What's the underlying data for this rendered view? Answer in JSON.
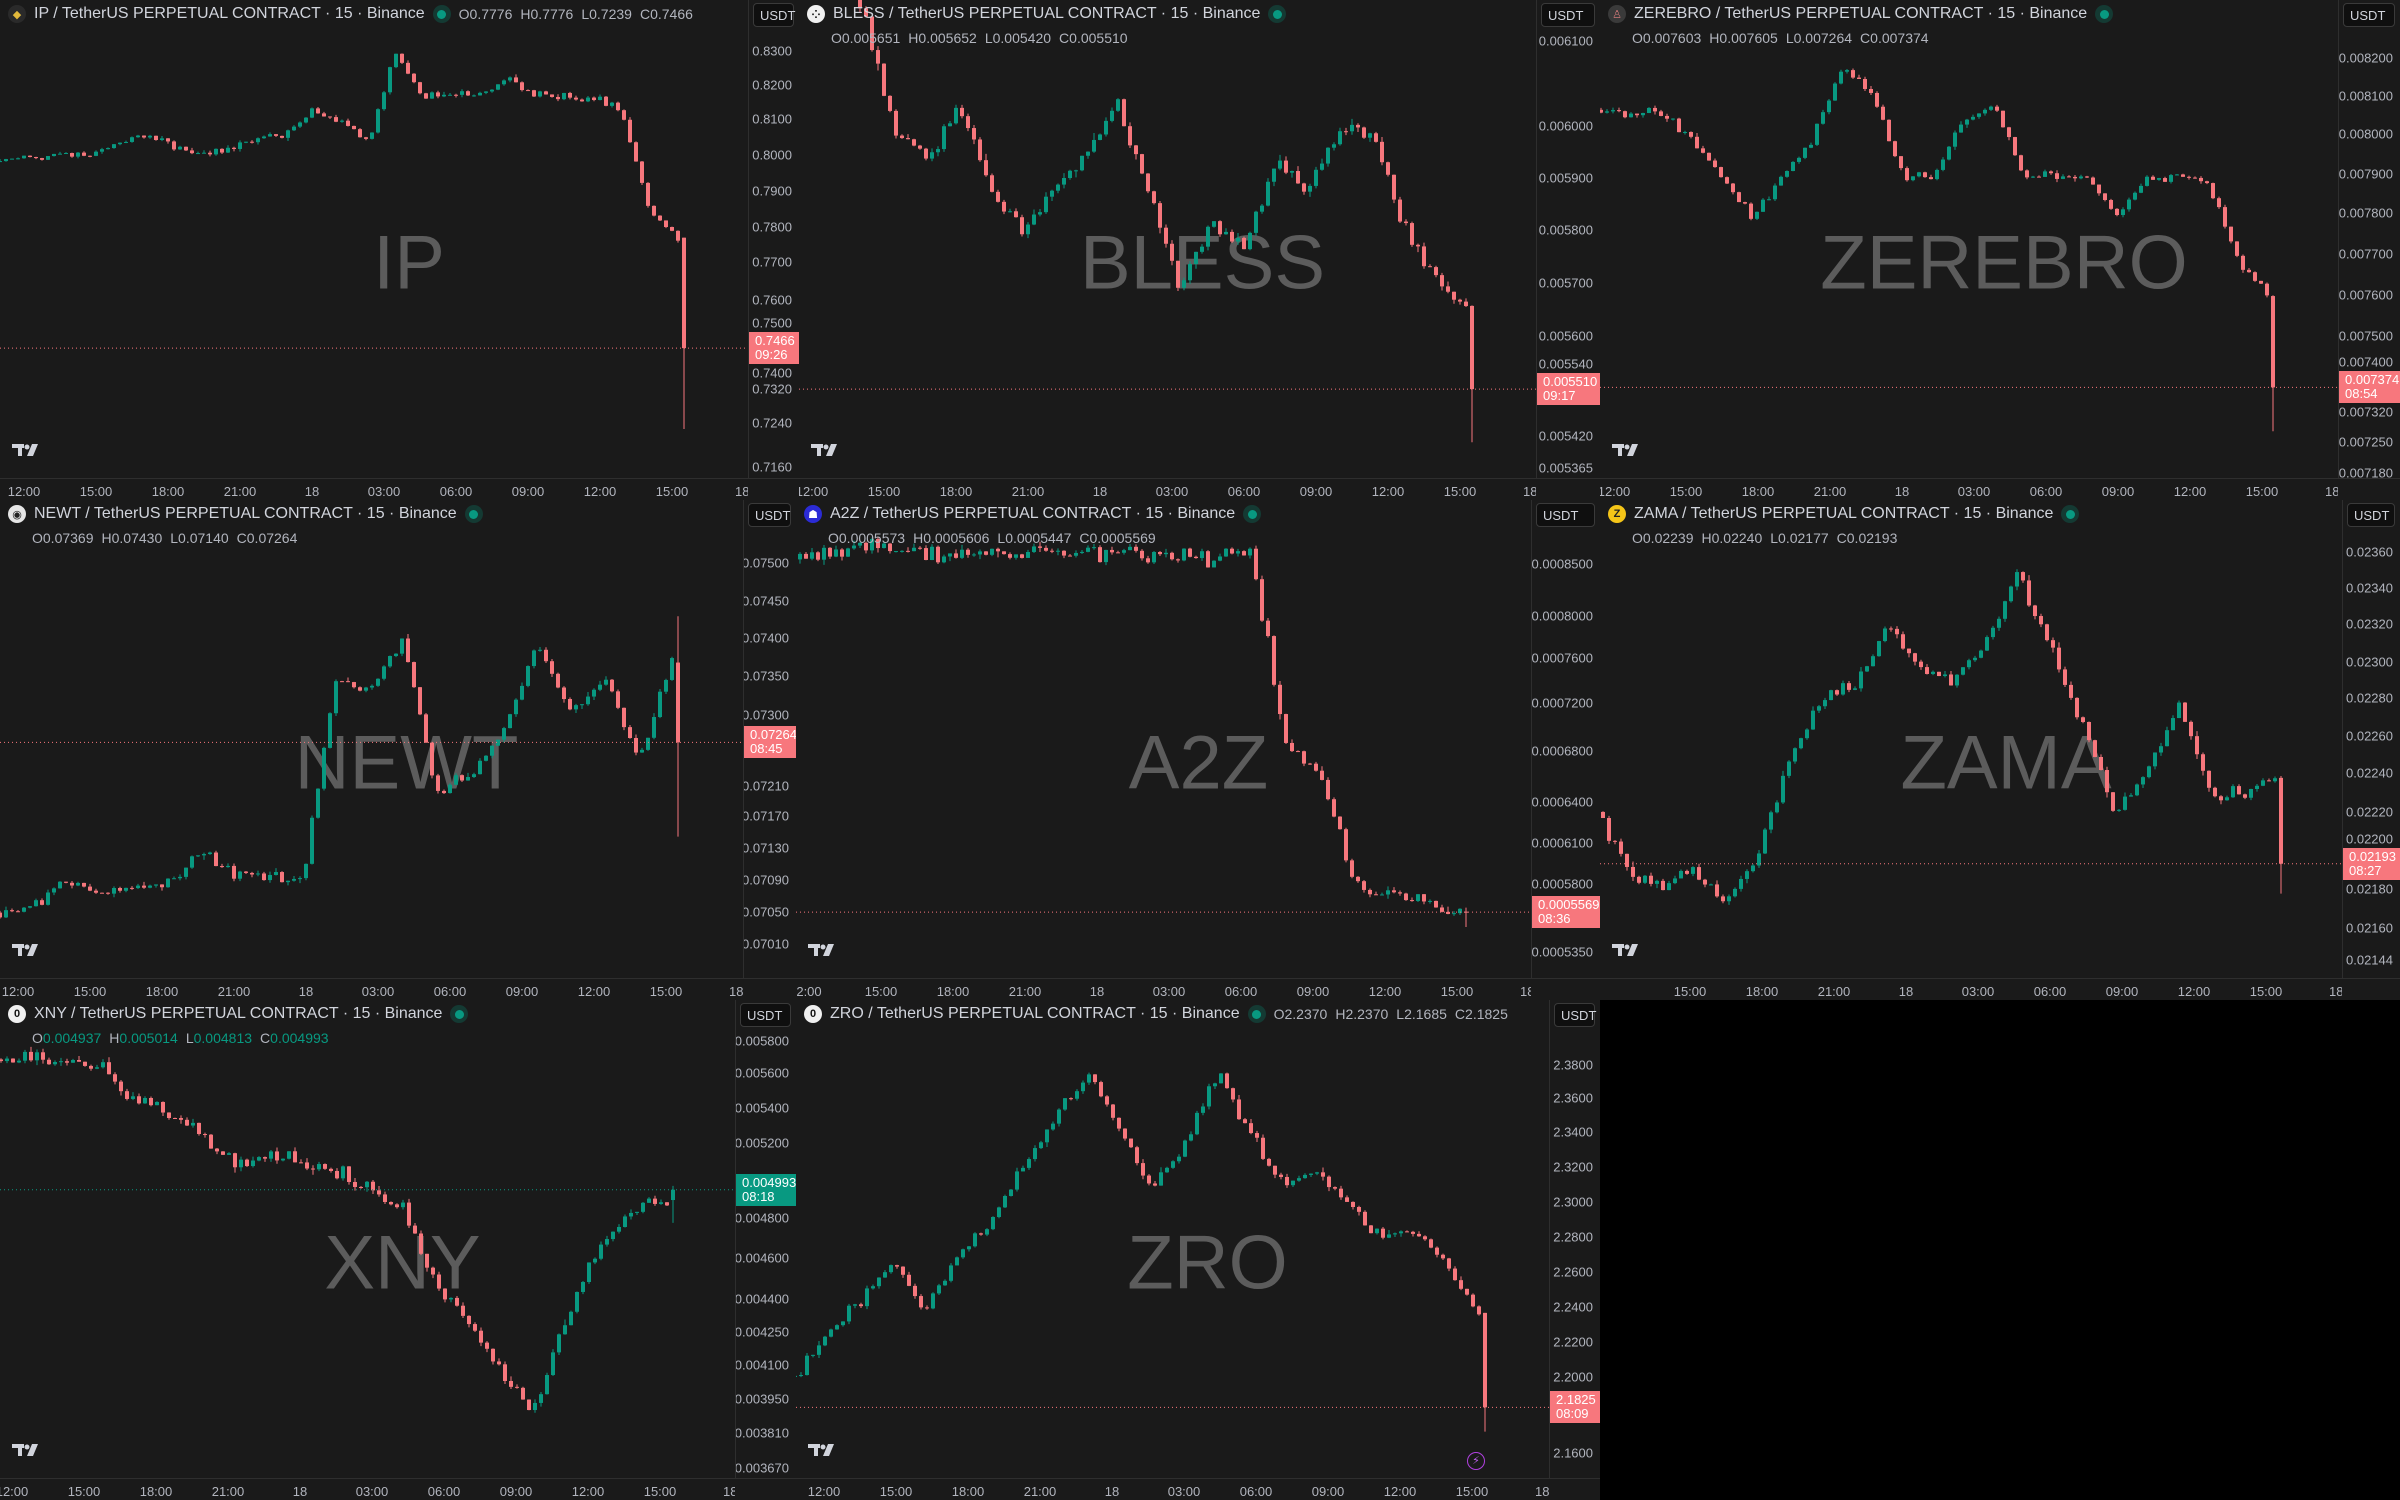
{
  "layout_name": "8-chart grid",
  "colors": {
    "up": "#089981",
    "down": "#f7777d",
    "background": "#1a1a1a",
    "text": "#d1d4dc",
    "muted": "#b2b5be",
    "status_dot": "#089981"
  },
  "charts": [
    {
      "symbol": "IP",
      "title": "IP / TetherUS PERPETUAL CONTRACT · 15 · Binance",
      "icon": "ip-diamond-icon",
      "icon_glyph": "◆",
      "icon_color": "#e2b93b",
      "icon_bg": "#2a2a2a",
      "ohlc": {
        "o": "0.7776",
        "h": "0.7776",
        "l": "0.7239",
        "c": "0.7466"
      },
      "ohlc_color": "#b2b5be",
      "currency": "USDT",
      "last_price": "0.7466",
      "countdown": "09:26",
      "price_box_color": "#f7777d",
      "price_ticks": [
        "0.8300",
        "0.8200",
        "0.8100",
        "0.8000",
        "0.7900",
        "0.7800",
        "0.7700",
        "0.7600",
        "0.7500",
        "0.7400",
        "0.7320",
        "0.7240",
        "0.7160"
      ],
      "time_labels": [
        "12:00",
        "15:00",
        "18:00",
        "21:00",
        "18",
        "03:00",
        "06:00",
        "09:00",
        "12:00",
        "15:00",
        "18:"
      ],
      "price_path": [
        0.799,
        0.8,
        0.801,
        0.8,
        0.804,
        0.806,
        0.804,
        0.801,
        0.802,
        0.806,
        0.806,
        0.813,
        0.811,
        0.804,
        0.829,
        0.817,
        0.818,
        0.818,
        0.823,
        0.818,
        0.817,
        0.817,
        0.813,
        0.785,
        0.7776
      ]
    },
    {
      "symbol": "BLESS",
      "title": "BLESS / TetherUS PERPETUAL CONTRACT · 15 · Binance",
      "icon": "bless-icon",
      "icon_glyph": "⁘",
      "icon_color": "#111",
      "icon_bg": "#f0f0f0",
      "ohlc": {
        "o": "0.005651",
        "h": "0.005652",
        "l": "0.005420",
        "c": "0.005510"
      },
      "ohlc_color": "#b2b5be",
      "currency": "USDT",
      "last_price": "0.005510",
      "countdown": "09:17",
      "price_box_color": "#f7777d",
      "price_ticks": [
        "0.006100",
        "0.006000",
        "0.005900",
        "0.005800",
        "0.005700",
        "0.005600",
        "0.005540",
        "0.005420",
        "0.005365"
      ],
      "time_labels": [
        "12:00",
        "15:00",
        "18:00",
        "21:00",
        "18",
        "03:00",
        "06:00",
        "09:00",
        "12:00",
        "15:00",
        "18:"
      ],
      "price_path": [
        0.00635,
        0.0063,
        0.00615,
        0.00595,
        0.0059,
        0.006,
        0.00585,
        0.00578,
        0.00585,
        0.0059,
        0.006,
        0.00585,
        0.00568,
        0.0058,
        0.00575,
        0.0059,
        0.00585,
        0.00595,
        0.00595,
        0.0058,
        0.0057,
        0.005651
      ]
    },
    {
      "symbol": "ZEREBRO",
      "title": "ZEREBRO / TetherUS PERPETUAL CONTRACT · 15 · Binance",
      "icon": "zerebro-icon",
      "icon_glyph": "♙",
      "icon_color": "#c77",
      "icon_bg": "#3a3a3a",
      "ohlc": {
        "o": "0.007603",
        "h": "0.007605",
        "l": "0.007264",
        "c": "0.007374"
      },
      "ohlc_color": "#b2b5be",
      "ohlc_second_line": true,
      "currency": "USDT",
      "last_price": "0.007374",
      "countdown": "08:54",
      "price_box_color": "#f7777d",
      "price_ticks": [
        "0.008200",
        "0.008100",
        "0.008000",
        "0.007900",
        "0.007800",
        "0.007700",
        "0.007600",
        "0.007500",
        "0.007400",
        "0.007320",
        "0.007250",
        "0.007180"
      ],
      "time_labels": [
        "12:00",
        "15:00",
        "18:00",
        "21:00",
        "18",
        "03:00",
        "06:00",
        "09:00",
        "12:00",
        "15:00",
        "18:"
      ],
      "price_path": [
        0.00807,
        0.00806,
        0.00807,
        0.008,
        0.0079,
        0.0078,
        0.0079,
        0.008,
        0.00818,
        0.0081,
        0.0079,
        0.0079,
        0.00805,
        0.00808,
        0.0079,
        0.0079,
        0.0079,
        0.0078,
        0.0079,
        0.0079,
        0.0079,
        0.0077,
        0.007603
      ]
    },
    {
      "symbol": "NEWT",
      "title": "NEWT / TetherUS PERPETUAL CONTRACT · 15 · Binance",
      "icon": "newt-icon",
      "icon_glyph": "◉",
      "icon_color": "#222",
      "icon_bg": "#e6e6e6",
      "ohlc": {
        "o": "0.07369",
        "h": "0.07430",
        "l": "0.07140",
        "c": "0.07264"
      },
      "ohlc_color": "#b2b5be",
      "currency": "USDT",
      "last_price": "0.07264",
      "countdown": "08:45",
      "price_box_color": "#f7777d",
      "price_ticks": [
        "0.07500",
        "0.07450",
        "0.07400",
        "0.07350",
        "0.07300",
        "0.07210",
        "0.07170",
        "0.07130",
        "0.07090",
        "0.07050",
        "0.07010"
      ],
      "time_labels": [
        "12:00",
        "15:00",
        "18:00",
        "21:00",
        "18",
        "03:00",
        "06:00",
        "09:00",
        "12:00",
        "15:00",
        "18:"
      ],
      "price_path": [
        0.0704,
        0.0705,
        0.0708,
        0.0707,
        0.0707,
        0.0708,
        0.0712,
        0.0709,
        0.0709,
        0.0708,
        0.0735,
        0.0733,
        0.074,
        0.072,
        0.0722,
        0.0728,
        0.074,
        0.073,
        0.0735,
        0.0724,
        0.07369
      ]
    },
    {
      "symbol": "A2Z",
      "title": "A2Z / TetherUS PERPETUAL CONTRACT · 15 · Binance",
      "icon": "a2z-icon",
      "icon_glyph": "☗",
      "icon_color": "#fff",
      "icon_bg": "#2b2bd6",
      "ohlc": {
        "o": "0.0005573",
        "h": "0.0005606",
        "l": "0.0005447",
        "c": "0.0005569"
      },
      "ohlc_color": "#b2b5be",
      "ohlc_second_line": true,
      "currency": "USDT",
      "last_price": "0.0005569",
      "countdown": "08:36",
      "price_box_color": "#f7777d",
      "price_ticks": [
        "0.0008500",
        "0.0008000",
        "0.0007600",
        "0.0007200",
        "0.0006800",
        "0.0006400",
        "0.0006100",
        "0.0005800",
        "0.0005350"
      ],
      "time_labels": [
        "2:00",
        "15:00",
        "18:00",
        "21:00",
        "18",
        "03:00",
        "06:00",
        "09:00",
        "12:00",
        "15:00",
        "18:"
      ],
      "price_path": [
        0.000848,
        0.000852,
        0.000856,
        0.000852,
        0.00085,
        0.000851,
        0.00085,
        0.000852,
        0.000851,
        0.000853,
        0.000851,
        0.00085,
        0.000846,
        0.000858,
        0.0007,
        0.00067,
        0.00058,
        0.00057,
        0.000565,
        0.0005573
      ]
    },
    {
      "symbol": "ZAMA",
      "title": "ZAMA / TetherUS PERPETUAL CONTRACT · 15 · Binance",
      "icon": "zama-icon",
      "icon_glyph": "Z",
      "icon_color": "#222",
      "icon_bg": "#f5c518",
      "ohlc": {
        "o": "0.02239",
        "h": "0.02240",
        "l": "0.02177",
        "c": "0.02193"
      },
      "ohlc_color": "#b2b5be",
      "currency": "USDT",
      "last_price": "0.02193",
      "countdown": "08:27",
      "price_box_color": "#f7777d",
      "price_ticks": [
        "0.02360",
        "0.02340",
        "0.02320",
        "0.02300",
        "0.02280",
        "0.02260",
        "0.02240",
        "0.02220",
        "0.02200",
        "0.02180",
        "0.02160",
        "0.02144"
      ],
      "time_labels": [
        "15:00",
        "18:00",
        "21:00",
        "18",
        "03:00",
        "06:00",
        "09:00",
        "12:00",
        "15:00",
        "18:"
      ],
      "price_path": [
        0.0222,
        0.0219,
        0.0218,
        0.0219,
        0.0217,
        0.022,
        0.0225,
        0.0228,
        0.0229,
        0.0232,
        0.023,
        0.0229,
        0.0231,
        0.0235,
        0.0231,
        0.0227,
        0.0222,
        0.0224,
        0.0228,
        0.0223,
        0.0223,
        0.02239
      ]
    },
    {
      "symbol": "XNY",
      "title": "XNY / TetherUS PERPETUAL CONTRACT · 15 · Binance",
      "icon": "xny-icon",
      "icon_glyph": "0",
      "icon_color": "#111",
      "icon_bg": "#f0f0f0",
      "ohlc": {
        "o": "0.004937",
        "h": "0.005014",
        "l": "0.004813",
        "c": "0.004993"
      },
      "ohlc_color": "#089981",
      "currency": "USDT",
      "last_price": "0.004993",
      "countdown": "08:18",
      "price_box_color": "#089981",
      "price_ticks": [
        "0.005800",
        "0.005600",
        "0.005400",
        "0.005200",
        "0.004800",
        "0.004600",
        "0.004400",
        "0.004250",
        "0.004100",
        "0.003950",
        "0.003810",
        "0.003670"
      ],
      "time_labels": [
        "12:00",
        "15:00",
        "18:00",
        "21:00",
        "18",
        "03:00",
        "06:00",
        "09:00",
        "12:00",
        "15:00",
        "18:"
      ],
      "price_path": [
        0.0057,
        0.0057,
        0.00569,
        0.00565,
        0.0055,
        0.0054,
        0.0053,
        0.00512,
        0.0052,
        0.00515,
        0.0051,
        0.005,
        0.0049,
        0.0045,
        0.0043,
        0.004,
        0.0038,
        0.0043,
        0.0047,
        0.0049,
        0.004937
      ]
    },
    {
      "symbol": "ZRO",
      "title": "ZRO / TetherUS PERPETUAL CONTRACT · 15 · Binance",
      "icon": "zro-icon",
      "icon_glyph": "0",
      "icon_color": "#111",
      "icon_bg": "#f0f0f0",
      "ohlc": {
        "o": "2.2370",
        "h": "2.2370",
        "l": "2.1685",
        "c": "2.1825"
      },
      "ohlc_color": "#b2b5be",
      "currency": "USDT",
      "last_price": "2.1825",
      "countdown": "08:09",
      "price_box_color": "#f7777d",
      "price_ticks": [
        "2.3800",
        "2.3600",
        "2.3400",
        "2.3200",
        "2.3000",
        "2.2800",
        "2.2600",
        "2.2400",
        "2.2200",
        "2.2000",
        "2.1600"
      ],
      "time_labels": [
        "12:00",
        "15:00",
        "18:00",
        "21:00",
        "18",
        "03:00",
        "06:00",
        "09:00",
        "12:00",
        "15:00",
        "18:"
      ],
      "price_path": [
        2.2,
        2.225,
        2.245,
        2.265,
        2.24,
        2.27,
        2.29,
        2.32,
        2.35,
        2.375,
        2.34,
        2.31,
        2.335,
        2.375,
        2.34,
        2.31,
        2.32,
        2.3,
        2.28,
        2.285,
        2.265,
        2.237
      ],
      "has_alert_icon": true
    }
  ]
}
